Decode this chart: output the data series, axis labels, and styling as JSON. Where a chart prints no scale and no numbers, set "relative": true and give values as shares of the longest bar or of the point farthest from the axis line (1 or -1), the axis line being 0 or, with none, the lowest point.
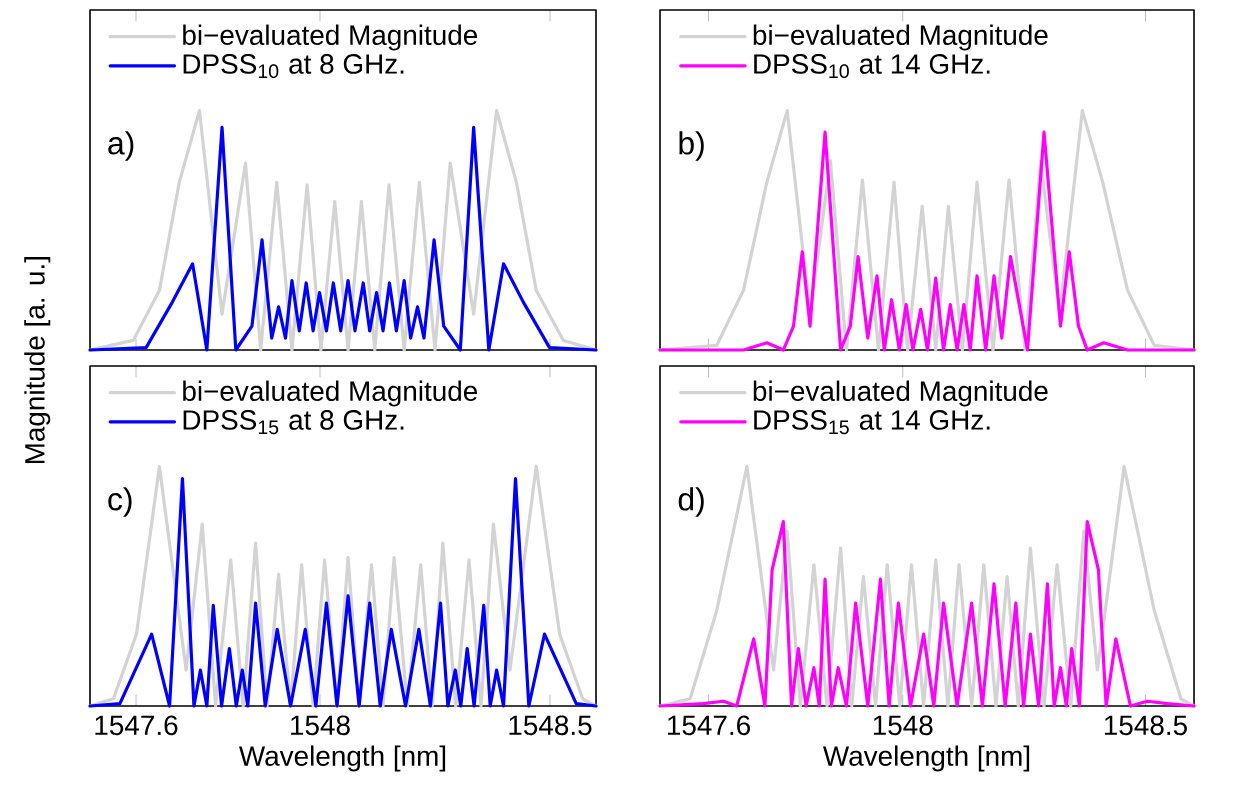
{
  "chart_data": [
    {
      "type": "line",
      "relative": true,
      "xlim": [
        1547.5,
        1548.6
      ],
      "xticks": [
        1547.6,
        1548,
        1548.5
      ],
      "tick_labels": false,
      "legend": "top left",
      "ylabel": "Magnitude [a. u.]",
      "annotations": [
        "a)"
      ],
      "series": [
        {
          "name": "bi−evaluated Magnitude",
          "color": "#d3d3d3",
          "x": [
            1547.5,
            1547.594,
            1547.651,
            1547.694,
            1547.738,
            1547.787,
            1547.838,
            1547.871,
            1547.906,
            1547.939,
            1547.972,
            1548.002,
            1548.032,
            1548.061,
            1548.09,
            1548.119,
            1548.15,
            1548.183,
            1548.216,
            1548.25,
            1548.283,
            1548.334,
            1548.384,
            1548.427,
            1548.47,
            1548.529,
            1548.6
          ],
          "values": [
            0,
            0.04,
            0.25,
            0.7,
            1.0,
            0.15,
            0.78,
            0,
            0.7,
            0,
            0.69,
            0,
            0.62,
            0,
            0.62,
            0,
            0.69,
            0,
            0.7,
            0,
            0.78,
            0.15,
            1.0,
            0.7,
            0.25,
            0.04,
            0
          ]
        },
        {
          "name": "DPSS$_{10}$ at 8 GHz.",
          "color": "#0000ff",
          "x": [
            1547.5,
            1547.622,
            1547.679,
            1547.723,
            1547.754,
            1547.787,
            1547.817,
            1547.852,
            1547.874,
            1547.895,
            1547.91,
            1547.925,
            1547.939,
            1547.955,
            1547.97,
            1547.985,
            1547.999,
            1548.014,
            1548.029,
            1548.045,
            1548.061,
            1548.076,
            1548.094,
            1548.108,
            1548.123,
            1548.137,
            1548.151,
            1548.166,
            1548.183,
            1548.197,
            1548.212,
            1548.226,
            1548.248,
            1548.269,
            1548.305,
            1548.334,
            1548.367,
            1548.399,
            1548.442,
            1548.499,
            1548.6
          ],
          "values": [
            0,
            0.01,
            0.2,
            0.36,
            0,
            0.93,
            0,
            0.1,
            0.46,
            0.05,
            0.18,
            0.05,
            0.29,
            0.08,
            0.28,
            0.08,
            0.24,
            0.08,
            0.28,
            0.08,
            0.29,
            0.08,
            0.28,
            0.08,
            0.24,
            0.08,
            0.28,
            0.08,
            0.29,
            0.05,
            0.18,
            0.05,
            0.46,
            0.1,
            0,
            0.93,
            0,
            0.36,
            0.2,
            0.01,
            0
          ]
        }
      ]
    },
    {
      "type": "line",
      "relative": true,
      "xlim": [
        1547.5,
        1548.6
      ],
      "xticks": [
        1547.6,
        1548,
        1548.5
      ],
      "tick_labels": false,
      "legend": "top left",
      "annotations": [
        "b)"
      ],
      "series": [
        {
          "name": "bi−evaluated Magnitude",
          "color": "#d3d3d3",
          "x": [
            1547.5,
            1547.617,
            1547.672,
            1547.72,
            1547.762,
            1547.809,
            1547.851,
            1547.884,
            1547.917,
            1547.95,
            1547.982,
            1548.01,
            1548.04,
            1548.068,
            1548.094,
            1548.123,
            1548.153,
            1548.186,
            1548.219,
            1548.252,
            1548.284,
            1548.323,
            1548.37,
            1548.412,
            1548.463,
            1548.518,
            1548.6
          ],
          "values": [
            0,
            0.02,
            0.25,
            0.7,
            1.0,
            0.15,
            0.79,
            0,
            0.71,
            0,
            0.7,
            0,
            0.6,
            0,
            0.6,
            0,
            0.7,
            0,
            0.71,
            0,
            0.79,
            0.15,
            1.0,
            0.7,
            0.25,
            0.02,
            0
          ]
        },
        {
          "name": "DPSS$_{10}$ at 14 GHz.",
          "color": "#ff00ff",
          "x": [
            1547.5,
            1547.672,
            1547.72,
            1547.754,
            1547.775,
            1547.793,
            1547.809,
            1547.84,
            1547.872,
            1547.892,
            1547.908,
            1547.928,
            1547.947,
            1547.962,
            1547.977,
            1547.993,
            1548.007,
            1548.021,
            1548.037,
            1548.051,
            1548.068,
            1548.084,
            1548.098,
            1548.112,
            1548.126,
            1548.139,
            1548.153,
            1548.171,
            1548.188,
            1548.204,
            1548.222,
            1548.257,
            1548.291,
            1548.325,
            1548.343,
            1548.362,
            1548.38,
            1548.414,
            1548.463,
            1548.6
          ],
          "values": [
            0,
            0,
            0.03,
            0,
            0.1,
            0.41,
            0.1,
            0.91,
            0,
            0.1,
            0.39,
            0.05,
            0.31,
            0,
            0.21,
            0,
            0.19,
            0,
            0.17,
            0,
            0.3,
            0,
            0.19,
            0,
            0.19,
            0,
            0.31,
            0,
            0.31,
            0.05,
            0.39,
            0,
            0.91,
            0.1,
            0.41,
            0.1,
            0,
            0.03,
            0,
            0
          ]
        }
      ]
    },
    {
      "type": "line",
      "relative": true,
      "xlim": [
        1547.5,
        1548.6
      ],
      "xticks": [
        1547.6,
        1548,
        1548.5
      ],
      "tick_labels": "x",
      "legend": "top left",
      "xlabel": "Wavelength [nm]",
      "annotations": [
        "c)"
      ],
      "series": [
        {
          "name": "bi−evaluated Magnitude",
          "color": "#d3d3d3",
          "x": [
            1547.5,
            1547.551,
            1547.601,
            1547.651,
            1547.709,
            1547.744,
            1547.773,
            1547.806,
            1547.833,
            1547.86,
            1547.885,
            1547.91,
            1547.936,
            1547.96,
            1547.985,
            1548.01,
            1548.037,
            1548.061,
            1548.085,
            1548.112,
            1548.137,
            1548.161,
            1548.19,
            1548.219,
            1548.244,
            1548.267,
            1548.295,
            1548.324,
            1548.35,
            1548.377,
            1548.413,
            1548.47,
            1548.521,
            1548.571,
            1548.6
          ],
          "values": [
            0,
            0.03,
            0.3,
            1.0,
            0.15,
            0.76,
            0,
            0.61,
            0,
            0.68,
            0,
            0.55,
            0,
            0.59,
            0,
            0.61,
            0,
            0.62,
            0,
            0.59,
            0,
            0.62,
            0,
            0.59,
            0,
            0.68,
            0,
            0.61,
            0,
            0.76,
            0.15,
            1.0,
            0.3,
            0.03,
            0
          ]
        },
        {
          "name": "DPSS$_{15}$ at 8 GHz.",
          "color": "#0000ff",
          "x": [
            1547.5,
            1547.565,
            1547.634,
            1547.673,
            1547.701,
            1547.726,
            1547.74,
            1547.754,
            1547.768,
            1547.786,
            1547.803,
            1547.818,
            1547.831,
            1547.843,
            1547.86,
            1547.881,
            1547.907,
            1547.936,
            1547.968,
            1547.991,
            1548.014,
            1548.037,
            1548.061,
            1548.085,
            1548.108,
            1548.131,
            1548.155,
            1548.186,
            1548.215,
            1548.24,
            1548.262,
            1548.278,
            1548.294,
            1548.306,
            1548.32,
            1548.335,
            1548.356,
            1548.37,
            1548.384,
            1548.399,
            1548.425,
            1548.454,
            1548.488,
            1548.557,
            1548.6
          ],
          "values": [
            0,
            0.01,
            0.3,
            0,
            0.95,
            0,
            0.15,
            0,
            0.42,
            0,
            0.24,
            0,
            0.15,
            0,
            0.43,
            0,
            0.32,
            0,
            0.32,
            0,
            0.43,
            0,
            0.46,
            0,
            0.43,
            0,
            0.32,
            0,
            0.32,
            0,
            0.43,
            0,
            0.15,
            0,
            0.24,
            0,
            0.42,
            0,
            0.15,
            0,
            0.95,
            0,
            0.3,
            0.01,
            0
          ]
        }
      ]
    },
    {
      "type": "line",
      "relative": true,
      "xlim": [
        1547.5,
        1548.6
      ],
      "xticks": [
        1547.6,
        1548,
        1548.5
      ],
      "tick_labels": "x",
      "legend": "top left",
      "xlabel": "Wavelength [nm]",
      "annotations": [
        "d)"
      ],
      "series": [
        {
          "name": "bi−evaluated Magnitude",
          "color": "#d3d3d3",
          "x": [
            1547.5,
            1547.562,
            1547.617,
            1547.679,
            1547.734,
            1547.762,
            1547.789,
            1547.817,
            1547.844,
            1547.872,
            1547.895,
            1547.919,
            1547.944,
            1547.968,
            1547.994,
            1548.018,
            1548.043,
            1548.068,
            1548.093,
            1548.116,
            1548.142,
            1548.167,
            1548.192,
            1548.215,
            1548.238,
            1548.263,
            1548.291,
            1548.318,
            1548.346,
            1548.373,
            1548.401,
            1548.456,
            1548.518,
            1548.573,
            1548.6
          ],
          "values": [
            0,
            0.03,
            0.4,
            1.0,
            0.15,
            0.73,
            0,
            0.59,
            0,
            0.66,
            0,
            0.54,
            0,
            0.59,
            0,
            0.59,
            0,
            0.61,
            0,
            0.59,
            0,
            0.59,
            0,
            0.54,
            0,
            0.66,
            0,
            0.59,
            0,
            0.73,
            0.15,
            1.0,
            0.4,
            0.03,
            0
          ]
        },
        {
          "name": "DPSS$_{15}$ at 14 GHz.",
          "color": "#ff00ff",
          "x": [
            1547.5,
            1547.589,
            1547.631,
            1547.658,
            1547.693,
            1547.716,
            1547.731,
            1547.754,
            1547.771,
            1547.785,
            1547.801,
            1547.817,
            1547.828,
            1547.84,
            1547.853,
            1547.867,
            1547.884,
            1547.903,
            1547.928,
            1547.954,
            1547.972,
            1547.991,
            1548.016,
            1548.043,
            1548.064,
            1548.084,
            1548.112,
            1548.142,
            1548.164,
            1548.188,
            1548.211,
            1548.233,
            1548.249,
            1548.263,
            1548.28,
            1548.298,
            1548.312,
            1548.325,
            1548.337,
            1548.348,
            1548.364,
            1548.38,
            1548.403,
            1548.419,
            1548.439,
            1548.469,
            1548.504,
            1548.545,
            1548.6
          ],
          "values": [
            0,
            0.01,
            0.02,
            0,
            0.28,
            0,
            0.57,
            0.77,
            0,
            0.24,
            0,
            0.16,
            0,
            0.53,
            0,
            0.16,
            0,
            0.43,
            0,
            0.53,
            0,
            0.43,
            0,
            0.3,
            0,
            0.43,
            0,
            0.43,
            0,
            0.51,
            0,
            0.43,
            0,
            0.3,
            0,
            0.51,
            0,
            0.16,
            0,
            0.24,
            0,
            0.77,
            0.57,
            0,
            0.28,
            0,
            0.02,
            0.01,
            0
          ]
        }
      ]
    }
  ]
}
